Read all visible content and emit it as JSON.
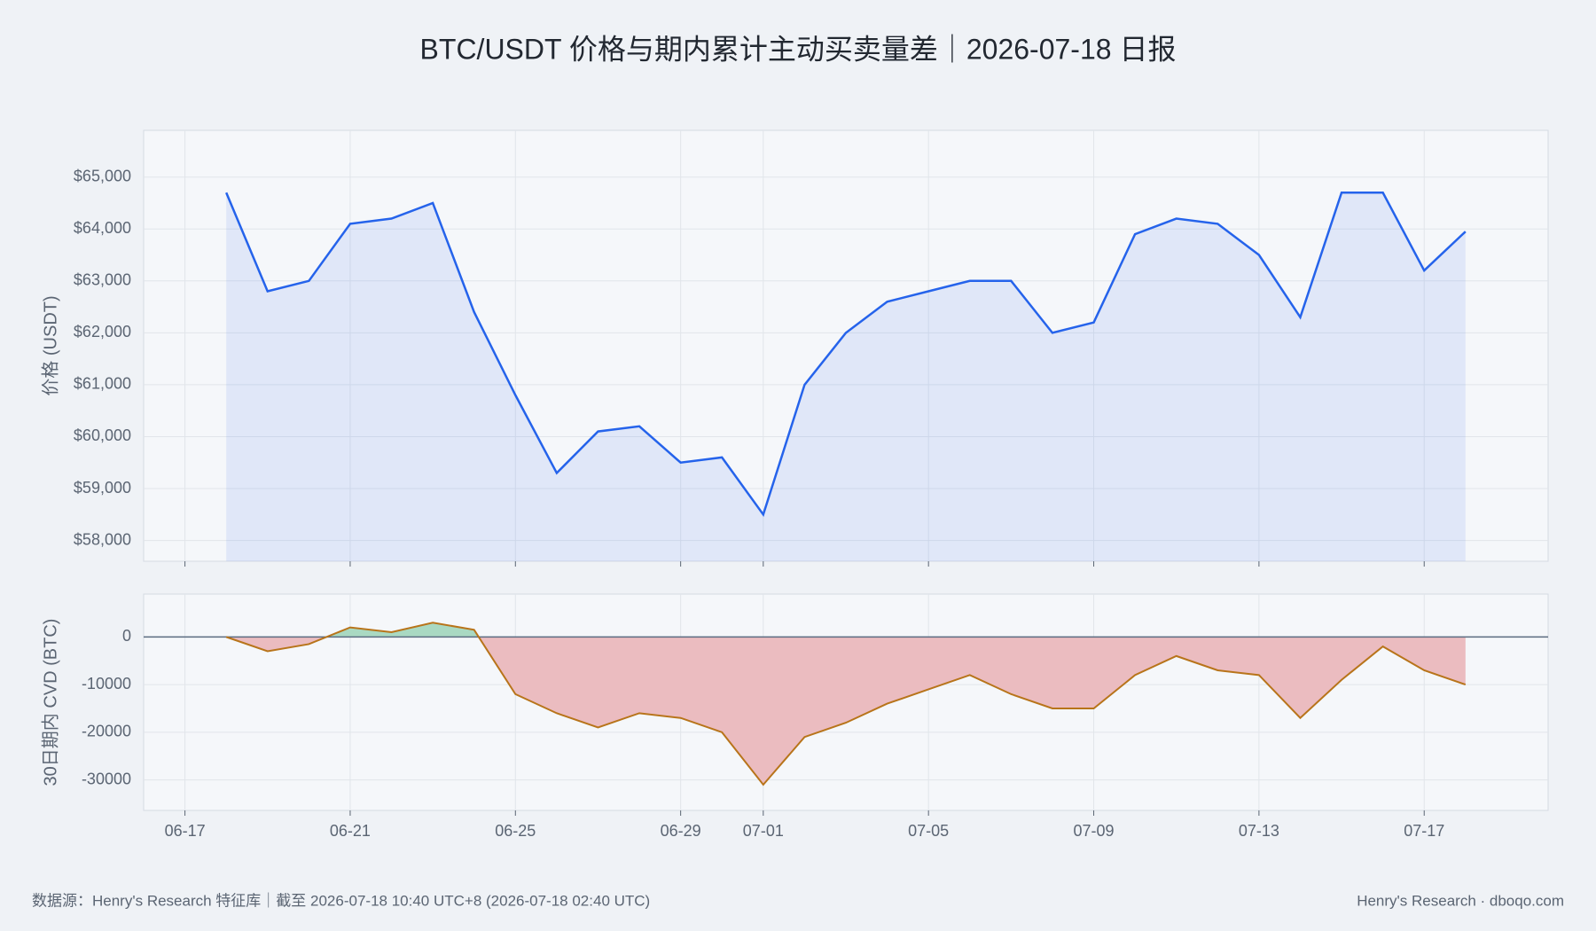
{
  "title": "BTC/USDT 价格与期内累计主动买卖量差｜2026-07-18 日报",
  "chart_data": [
    {
      "type": "line",
      "ylabel": "价格 (USDT)",
      "x": [
        "06-18",
        "06-19",
        "06-20",
        "06-21",
        "06-22",
        "06-23",
        "06-24",
        "06-25",
        "06-26",
        "06-27",
        "06-28",
        "06-29",
        "06-30",
        "07-01",
        "07-02",
        "07-03",
        "07-04",
        "07-05",
        "07-06",
        "07-07",
        "07-08",
        "07-09",
        "07-10",
        "07-11",
        "07-12",
        "07-13",
        "07-14",
        "07-15",
        "07-16",
        "07-17",
        "07-18"
      ],
      "series": [
        {
          "name": "价格",
          "color": "#2563eb",
          "values": [
            64700,
            62800,
            63000,
            64100,
            64200,
            64500,
            62400,
            60800,
            59300,
            60100,
            60200,
            59500,
            59600,
            58500,
            61000,
            62000,
            62600,
            62800,
            63000,
            63000,
            62000,
            62200,
            63900,
            64200,
            64100,
            63500,
            62300,
            64700,
            64700,
            63200,
            63950
          ]
        }
      ],
      "xlim": [
        "06-16",
        "07-20"
      ],
      "ylim": [
        57600,
        65900
      ],
      "yticks": [
        {
          "value": 58000,
          "label": "$58,000"
        },
        {
          "value": 59000,
          "label": "$59,000"
        },
        {
          "value": 60000,
          "label": "$60,000"
        },
        {
          "value": 61000,
          "label": "$61,000"
        },
        {
          "value": 62000,
          "label": "$62,000"
        },
        {
          "value": 63000,
          "label": "$63,000"
        },
        {
          "value": 64000,
          "label": "$64,000"
        },
        {
          "value": 65000,
          "label": "$65,000"
        }
      ],
      "grid": true
    },
    {
      "type": "area",
      "ylabel": "30日期内 CVD (BTC)",
      "x": [
        "06-18",
        "06-19",
        "06-20",
        "06-21",
        "06-22",
        "06-23",
        "06-24",
        "06-25",
        "06-26",
        "06-27",
        "06-28",
        "06-29",
        "06-30",
        "07-01",
        "07-02",
        "07-03",
        "07-04",
        "07-05",
        "07-06",
        "07-07",
        "07-08",
        "07-09",
        "07-10",
        "07-11",
        "07-12",
        "07-13",
        "07-14",
        "07-15",
        "07-16",
        "07-17",
        "07-18"
      ],
      "series": [
        {
          "name": "CVD",
          "color": "#b8741a",
          "positive_color": "#a9d9c2",
          "negative_color": "#ebbcc0",
          "values": [
            0,
            -3000,
            -1500,
            2000,
            1000,
            3000,
            1500,
            -12000,
            -16000,
            -19000,
            -16000,
            -17000,
            -20000,
            -31000,
            -21000,
            -18000,
            -14000,
            -11000,
            -8000,
            -12000,
            -15000,
            -15000,
            -8000,
            -4000,
            -7000,
            -8000,
            -17000,
            -9000,
            -2000,
            -7000,
            -10000
          ]
        }
      ],
      "xlim": [
        "06-16",
        "07-20"
      ],
      "xticks": [
        "06-17",
        "06-21",
        "06-25",
        "06-29",
        "07-01",
        "07-05",
        "07-09",
        "07-13",
        "07-17"
      ],
      "ylim": [
        -36400,
        9000
      ],
      "yticks": [
        -30000,
        -20000,
        -10000,
        0
      ],
      "grid": true
    }
  ],
  "footer": {
    "source": "数据源：Henry's Research 特征库｜截至 2026-07-18 10:40 UTC+8 (2026-07-18 02:40 UTC)",
    "brand": "Henry's Research · dboqo.com"
  }
}
